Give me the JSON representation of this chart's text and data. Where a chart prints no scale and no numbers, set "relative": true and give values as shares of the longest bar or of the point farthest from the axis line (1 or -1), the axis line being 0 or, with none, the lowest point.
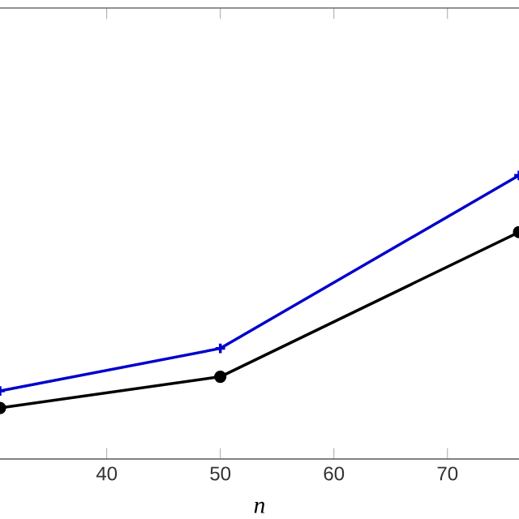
{
  "chart_data": {
    "type": "line",
    "relative": true,
    "xlabel": "n",
    "xlim": [
      30.6,
      76.3
    ],
    "xticks": [
      40,
      50,
      60,
      70
    ],
    "tick_labels": "x",
    "line_style": "solid",
    "series": [
      {
        "color": "#0000cc",
        "marker": "cross",
        "x": [
          30.6,
          50,
          76.3
        ],
        "values": [
          0.24,
          0.39,
          1.0
        ]
      },
      {
        "color": "#000000",
        "marker": "circle",
        "x": [
          30.6,
          50,
          76.3
        ],
        "values": [
          0.18,
          0.29,
          0.8
        ]
      }
    ]
  }
}
